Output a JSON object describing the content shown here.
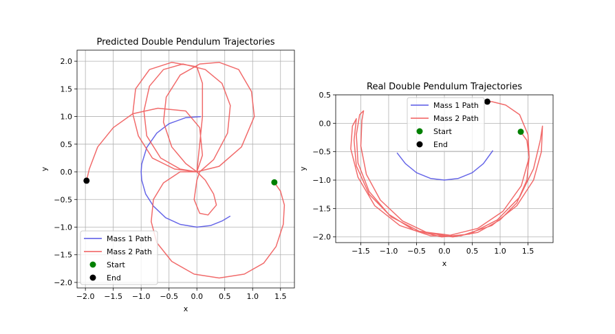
{
  "chart_data": [
    {
      "type": "line",
      "title": "Predicted Double Pendulum Trajectories",
      "xlabel": "x",
      "ylabel": "y",
      "xlim": [
        -2.15,
        1.75
      ],
      "ylim": [
        -2.1,
        2.2
      ],
      "xticks": [
        -2.0,
        -1.5,
        -1.0,
        -0.5,
        0.0,
        0.5,
        1.0,
        1.5
      ],
      "xtick_labels": [
        "−2.0",
        "−1.5",
        "−1.0",
        "−0.5",
        "0.0",
        "0.5",
        "1.0",
        "1.5"
      ],
      "yticks": [
        -2.0,
        -1.5,
        -1.0,
        -0.5,
        0.0,
        0.5,
        1.0,
        1.5,
        2.0
      ],
      "ytick_labels": [
        "−2.0",
        "−1.5",
        "−1.0",
        "−0.5",
        "0.0",
        "0.5",
        "1.0",
        "1.5",
        "2.0"
      ],
      "grid": true,
      "legend_position": "lower-left",
      "series": [
        {
          "name": "Mass 1 Path",
          "color": "#5555e6",
          "points": [
            [
              0.07,
              1.0
            ],
            [
              -0.2,
              0.98
            ],
            [
              -0.5,
              0.87
            ],
            [
              -0.72,
              0.7
            ],
            [
              -0.9,
              0.44
            ],
            [
              -0.99,
              0.14
            ],
            [
              -1.0,
              0.0
            ],
            [
              -0.99,
              -0.15
            ],
            [
              -0.92,
              -0.4
            ],
            [
              -0.78,
              -0.62
            ],
            [
              -0.56,
              -0.83
            ],
            [
              -0.3,
              -0.95
            ],
            [
              0.0,
              -1.0
            ],
            [
              0.25,
              -0.97
            ],
            [
              0.45,
              -0.89
            ],
            [
              0.6,
              -0.8
            ]
          ]
        },
        {
          "name": "Mass 2 Path",
          "color": "#f05a5a",
          "points": [
            [
              1.39,
              -0.19
            ],
            [
              1.5,
              -0.35
            ],
            [
              1.57,
              -0.6
            ],
            [
              1.55,
              -0.95
            ],
            [
              1.42,
              -1.35
            ],
            [
              1.2,
              -1.65
            ],
            [
              0.85,
              -1.85
            ],
            [
              0.4,
              -1.92
            ],
            [
              -0.05,
              -1.85
            ],
            [
              -0.45,
              -1.62
            ],
            [
              -0.72,
              -1.28
            ],
            [
              -0.82,
              -0.9
            ],
            [
              -0.78,
              -0.5
            ],
            [
              -0.6,
              -0.2
            ],
            [
              -0.3,
              0.0
            ],
            [
              0.0,
              0.0
            ],
            [
              0.15,
              -0.15
            ],
            [
              0.3,
              -0.4
            ],
            [
              0.35,
              -0.6
            ],
            [
              0.2,
              -0.78
            ],
            [
              0.05,
              -0.75
            ],
            [
              -0.05,
              -0.5
            ],
            [
              0.0,
              -0.15
            ],
            [
              0.05,
              0.0
            ],
            [
              0.3,
              0.22
            ],
            [
              0.55,
              0.7
            ],
            [
              0.6,
              1.2
            ],
            [
              0.45,
              1.6
            ],
            [
              0.15,
              1.85
            ],
            [
              -0.25,
              1.95
            ],
            [
              -0.6,
              1.85
            ],
            [
              -0.85,
              1.55
            ],
            [
              -0.95,
              1.1
            ],
            [
              -0.9,
              0.65
            ],
            [
              -0.65,
              0.25
            ],
            [
              -0.3,
              0.05
            ],
            [
              0.0,
              0.0
            ],
            [
              0.4,
              0.1
            ],
            [
              0.8,
              0.45
            ],
            [
              1.03,
              1.0
            ],
            [
              0.98,
              1.45
            ],
            [
              0.75,
              1.85
            ],
            [
              0.4,
              1.98
            ],
            [
              0.05,
              1.95
            ],
            [
              -0.3,
              1.75
            ],
            [
              -0.55,
              1.35
            ],
            [
              -0.6,
              0.9
            ],
            [
              -0.45,
              0.45
            ],
            [
              -0.2,
              0.15
            ],
            [
              0.0,
              0.0
            ],
            [
              -0.4,
              0.05
            ],
            [
              -0.8,
              0.25
            ],
            [
              -1.05,
              0.65
            ],
            [
              -1.15,
              1.05
            ],
            [
              -1.1,
              1.5
            ],
            [
              -0.85,
              1.85
            ],
            [
              -0.45,
              1.98
            ],
            [
              0.0,
              1.9
            ],
            [
              0.1,
              1.6
            ],
            [
              0.1,
              1.0
            ],
            [
              0.05,
              0.5
            ],
            [
              0.0,
              0.0
            ],
            [
              0.1,
              0.3
            ],
            [
              0.05,
              0.8
            ],
            [
              -0.2,
              1.1
            ],
            [
              -0.7,
              1.15
            ],
            [
              -1.15,
              1.05
            ],
            [
              -1.5,
              0.8
            ],
            [
              -1.78,
              0.45
            ],
            [
              -1.93,
              0.05
            ],
            [
              -1.98,
              -0.16
            ]
          ]
        }
      ],
      "markers": [
        {
          "name": "Start",
          "color": "#008000",
          "x": 1.39,
          "y": -0.19
        },
        {
          "name": "End",
          "color": "#000000",
          "x": -1.98,
          "y": -0.16
        }
      ]
    },
    {
      "type": "line",
      "title": "Real Double Pendulum Trajectories",
      "xlabel": "x",
      "ylabel": "y",
      "xlim": [
        -1.95,
        1.95
      ],
      "ylim": [
        -2.1,
        0.5
      ],
      "xticks": [
        -1.5,
        -1.0,
        -0.5,
        0.0,
        0.5,
        1.0,
        1.5
      ],
      "xtick_labels": [
        "−1.5",
        "−1.0",
        "−0.5",
        "0.0",
        "0.5",
        "1.0",
        "1.5"
      ],
      "yticks": [
        -2.0,
        -1.5,
        -1.0,
        -0.5,
        0.0,
        0.5
      ],
      "ytick_labels": [
        "−2.0",
        "−1.5",
        "−1.0",
        "−0.5",
        "0.0",
        "0.5"
      ],
      "grid": true,
      "legend_position": "upper-center",
      "series": [
        {
          "name": "Mass 1 Path",
          "color": "#5555e6",
          "points": [
            [
              -0.85,
              -0.52
            ],
            [
              -0.7,
              -0.71
            ],
            [
              -0.5,
              -0.87
            ],
            [
              -0.25,
              -0.97
            ],
            [
              0.0,
              -1.0
            ],
            [
              0.25,
              -0.97
            ],
            [
              0.5,
              -0.87
            ],
            [
              0.7,
              -0.71
            ],
            [
              0.87,
              -0.48
            ]
          ]
        },
        {
          "name": "Mass 2 Path",
          "color": "#f05a5a",
          "points": [
            [
              1.37,
              -0.15
            ],
            [
              1.48,
              -0.3
            ],
            [
              1.52,
              -0.6
            ],
            [
              1.48,
              -1.0
            ],
            [
              1.3,
              -1.4
            ],
            [
              1.0,
              -1.7
            ],
            [
              0.6,
              -1.92
            ],
            [
              0.15,
              -2.0
            ],
            [
              -0.3,
              -1.93
            ],
            [
              -0.75,
              -1.72
            ],
            [
              -1.15,
              -1.35
            ],
            [
              -1.4,
              -0.9
            ],
            [
              -1.5,
              -0.4
            ],
            [
              -1.48,
              0.05
            ],
            [
              -1.45,
              0.22
            ],
            [
              -1.52,
              0.15
            ],
            [
              -1.58,
              -0.2
            ],
            [
              -1.55,
              -0.7
            ],
            [
              -1.35,
              -1.2
            ],
            [
              -1.0,
              -1.6
            ],
            [
              -0.55,
              -1.88
            ],
            [
              -0.05,
              -2.0
            ],
            [
              0.45,
              -1.95
            ],
            [
              0.95,
              -1.7
            ],
            [
              1.35,
              -1.3
            ],
            [
              1.6,
              -0.8
            ],
            [
              1.72,
              -0.3
            ],
            [
              1.76,
              -0.05
            ],
            [
              1.74,
              -0.5
            ],
            [
              1.6,
              -1.0
            ],
            [
              1.3,
              -1.45
            ],
            [
              0.85,
              -1.8
            ],
            [
              0.3,
              -1.98
            ],
            [
              -0.25,
              -1.98
            ],
            [
              -0.8,
              -1.8
            ],
            [
              -1.25,
              -1.45
            ],
            [
              -1.55,
              -0.95
            ],
            [
              -1.68,
              -0.45
            ],
            [
              -1.65,
              -0.05
            ],
            [
              -1.58,
              0.08
            ],
            [
              -1.62,
              -0.3
            ],
            [
              -1.58,
              -0.75
            ],
            [
              -1.35,
              -1.25
            ],
            [
              -0.95,
              -1.65
            ],
            [
              -0.45,
              -1.9
            ],
            [
              0.1,
              -1.97
            ],
            [
              0.6,
              -1.85
            ],
            [
              1.05,
              -1.55
            ],
            [
              1.38,
              -1.1
            ],
            [
              1.52,
              -0.6
            ],
            [
              1.5,
              -0.2
            ],
            [
              1.35,
              0.15
            ],
            [
              1.1,
              0.32
            ],
            [
              0.85,
              0.38
            ],
            [
              0.77,
              0.38
            ]
          ]
        }
      ],
      "markers": [
        {
          "name": "Start",
          "color": "#008000",
          "x": 1.37,
          "y": -0.15
        },
        {
          "name": "End",
          "color": "#000000",
          "x": 0.77,
          "y": 0.38
        }
      ]
    }
  ]
}
